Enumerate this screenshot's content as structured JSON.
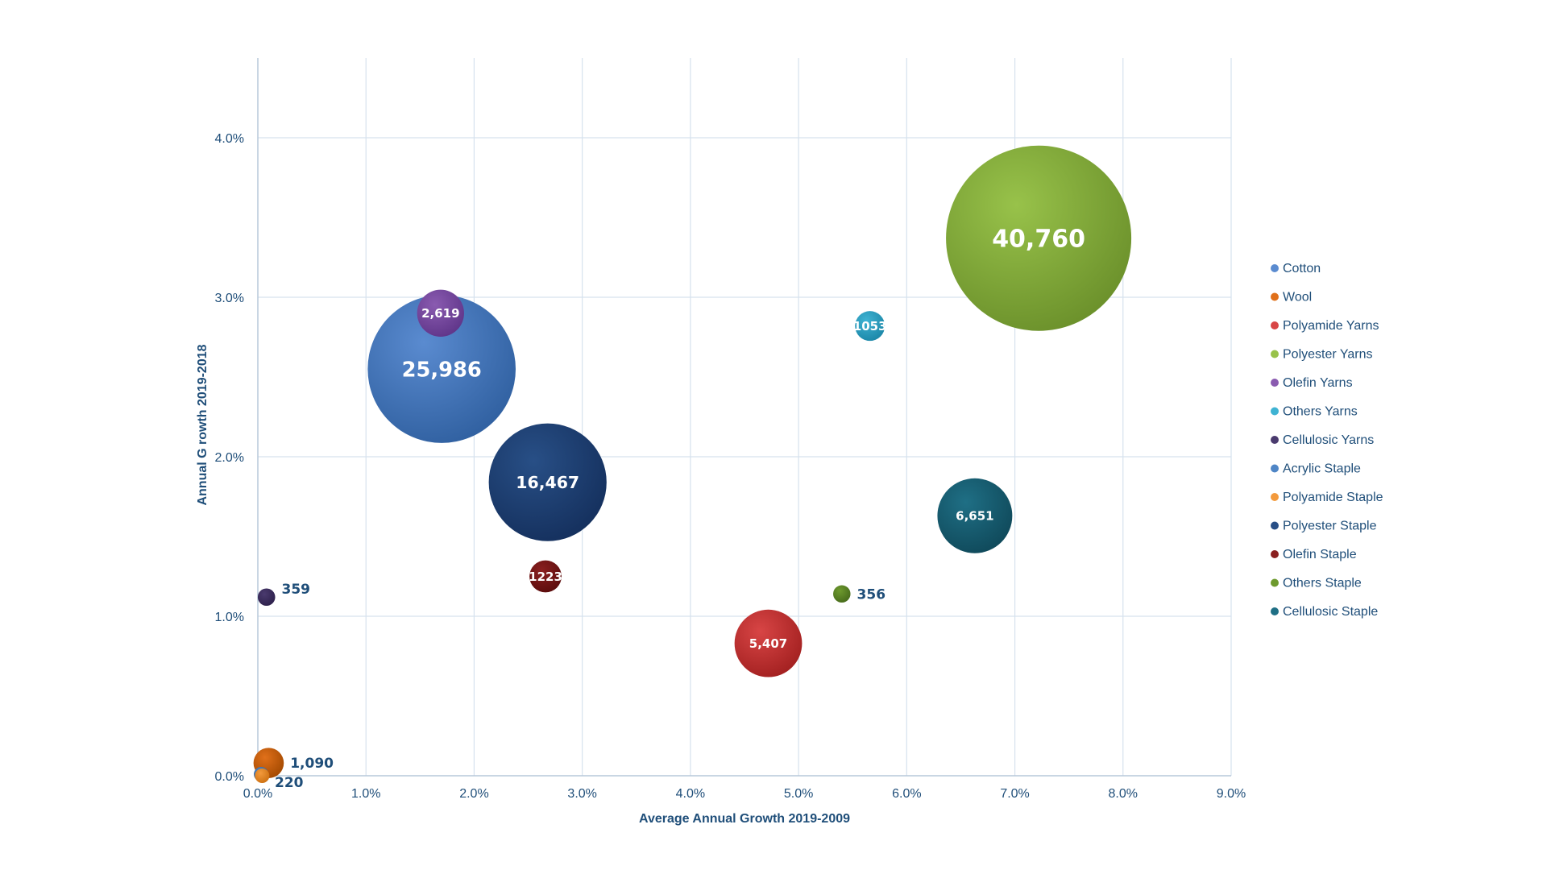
{
  "chart_data": {
    "type": "bubble",
    "xlabel": "Average Annual Growth 2019-2009",
    "ylabel": "Annual G rowth 2019-2018",
    "xlim": [
      0,
      9
    ],
    "ylim": [
      0,
      4.5
    ],
    "x_ticks": [
      "0.0%",
      "1.0%",
      "2.0%",
      "3.0%",
      "4.0%",
      "5.0%",
      "6.0%",
      "7.0%",
      "8.0%",
      "9.0%"
    ],
    "y_ticks": [
      "0.0%",
      "1.0%",
      "2.0%",
      "3.0%",
      "4.0%"
    ],
    "grid": true,
    "legend_position": "right",
    "series": [
      {
        "name": "Cotton",
        "x": 1.7,
        "y": 2.55,
        "size": 25986,
        "label": "25,986",
        "color": "#5a8bd0",
        "color2": "#2f5f9f",
        "label_pos": "inside"
      },
      {
        "name": "Wool",
        "x": 0.1,
        "y": 0.08,
        "size": 1090,
        "label": "1,090",
        "color": "#e0701a",
        "color2": "#a14800",
        "label_pos": "right"
      },
      {
        "name": "Polyamide Yarns",
        "x": 4.72,
        "y": 0.83,
        "size": 5407,
        "label": "5,407",
        "color": "#d84545",
        "color2": "#a11f1f",
        "label_pos": "inside"
      },
      {
        "name": "Polyester Yarns",
        "x": 7.22,
        "y": 3.37,
        "size": 40760,
        "label": "40,760",
        "color": "#98c24a",
        "color2": "#6a8f2a",
        "label_pos": "inside"
      },
      {
        "name": "Olefin Yarns",
        "x": 1.69,
        "y": 2.9,
        "size": 2619,
        "label": "2,619",
        "color": "#8a5bb0",
        "color2": "#5e3488",
        "label_pos": "inside"
      },
      {
        "name": "Others Yarns",
        "x": 5.66,
        "y": 2.82,
        "size": 1053,
        "label": "1053",
        "color": "#3fb3d3",
        "color2": "#1a85a6",
        "label_pos": "inside"
      },
      {
        "name": "Cellulosic Yarns",
        "x": 0.08,
        "y": 1.12,
        "size": 359,
        "label": "359",
        "color": "#4a3a6e",
        "color2": "#2c1f4a",
        "label_pos": "right"
      },
      {
        "name": "Acrylic Staple",
        "x": 0.03,
        "y": 0.01,
        "size": 220,
        "label": "220",
        "color": "#4f86c6",
        "color2": "#2a5d99",
        "label_pos": "right"
      },
      {
        "name": "Polyamide Staple",
        "x": 0.04,
        "y": 0.0,
        "size": 220,
        "label": "",
        "color": "#f39a3c",
        "color2": "#cc6f10",
        "label_pos": "none"
      },
      {
        "name": "Polyester Staple",
        "x": 2.68,
        "y": 1.84,
        "size": 16467,
        "label": "16,467",
        "color": "#284f86",
        "color2": "#142f5c",
        "label_pos": "inside"
      },
      {
        "name": "Olefin Staple",
        "x": 2.66,
        "y": 1.25,
        "size": 1223,
        "label": "1223",
        "color": "#8a2020",
        "color2": "#5a0c0c",
        "label_pos": "inside"
      },
      {
        "name": "Others Staple",
        "x": 5.4,
        "y": 1.14,
        "size": 356,
        "label": "356",
        "color": "#6e9a2e",
        "color2": "#45691a",
        "label_pos": "right"
      },
      {
        "name": "Cellulosic Staple",
        "x": 6.63,
        "y": 1.63,
        "size": 6651,
        "label": "6,651",
        "color": "#1f6f85",
        "color2": "#0f4859",
        "label_pos": "inside"
      }
    ]
  }
}
